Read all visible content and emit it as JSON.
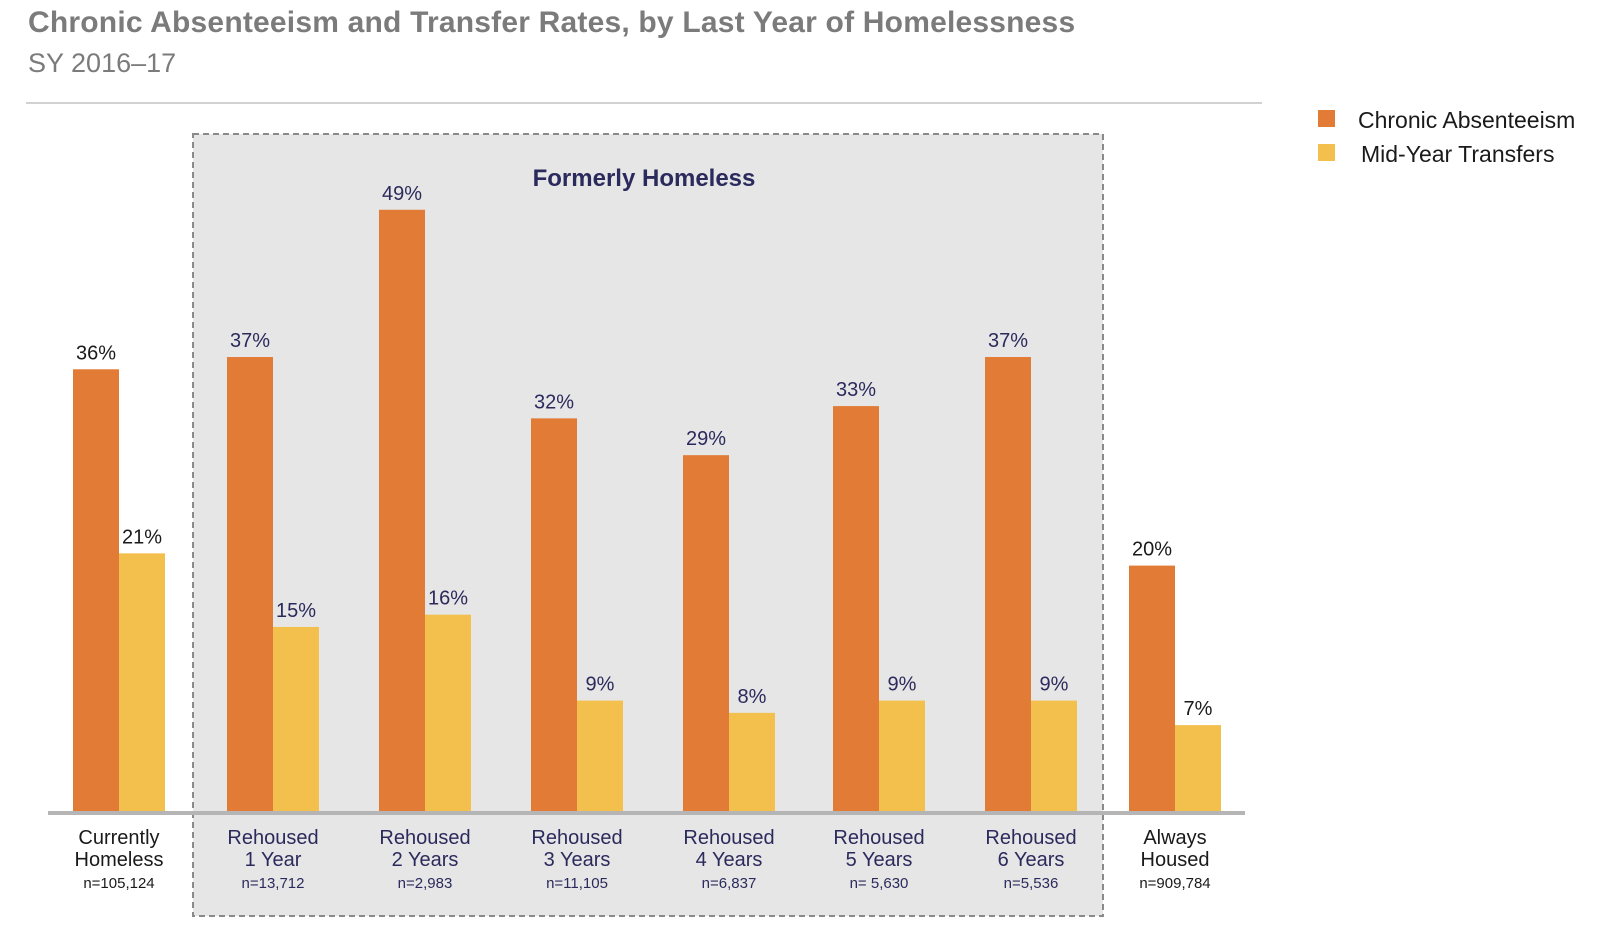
{
  "title": "Chronic Absenteeism and Transfer Rates, by Last Year of Homelessness",
  "subtitle": "SY 2016–17",
  "group_label": "Formerly Homeless",
  "colors": {
    "chronic": "#E27B36",
    "transfers": "#F4C04D",
    "group_box_fill": "#E6E6E6",
    "group_box_border": "#8a8a8a",
    "group_text": "#2b2a5c",
    "outside_text": "#1a1a1a",
    "title": "#7b7b7b",
    "baseline": "#b5b5b5"
  },
  "legend": {
    "chronic": "Chronic Absenteeism",
    "transfers": "Mid-Year Transfers"
  },
  "chart_data": {
    "type": "bar",
    "title": "Chronic Absenteeism and Transfer Rates, by Last Year of Homelessness",
    "subtitle": "SY 2016–17",
    "unit": "%",
    "categories": [
      {
        "line1": "Currently",
        "line2": "Homeless",
        "n": "n=105,124",
        "in_group": false
      },
      {
        "line1": "Rehoused",
        "line2": "1 Year",
        "n": "n=13,712",
        "in_group": true
      },
      {
        "line1": "Rehoused",
        "line2": "2 Years",
        "n": "n=2,983",
        "in_group": true
      },
      {
        "line1": "Rehoused",
        "line2": "3 Years",
        "n": "n=11,105",
        "in_group": true
      },
      {
        "line1": "Rehoused",
        "line2": "4 Years",
        "n": "n=6,837",
        "in_group": true
      },
      {
        "line1": "Rehoused",
        "line2": "5 Years",
        "n": "n= 5,630",
        "in_group": true
      },
      {
        "line1": "Rehoused",
        "line2": "6 Years",
        "n": "n=5,536",
        "in_group": true
      },
      {
        "line1": "Always",
        "line2": "Housed",
        "n": "n=909,784",
        "in_group": false
      }
    ],
    "series": [
      {
        "name": "Chronic Absenteeism",
        "key": "chronic",
        "values": [
          36,
          37,
          49,
          32,
          29,
          33,
          37,
          20
        ]
      },
      {
        "name": "Mid-Year Transfers",
        "key": "transfers",
        "values": [
          21,
          15,
          16,
          9,
          8,
          9,
          9,
          7
        ]
      }
    ],
    "ylim": [
      0,
      60
    ],
    "grid": false,
    "legend_position": "top-right"
  }
}
